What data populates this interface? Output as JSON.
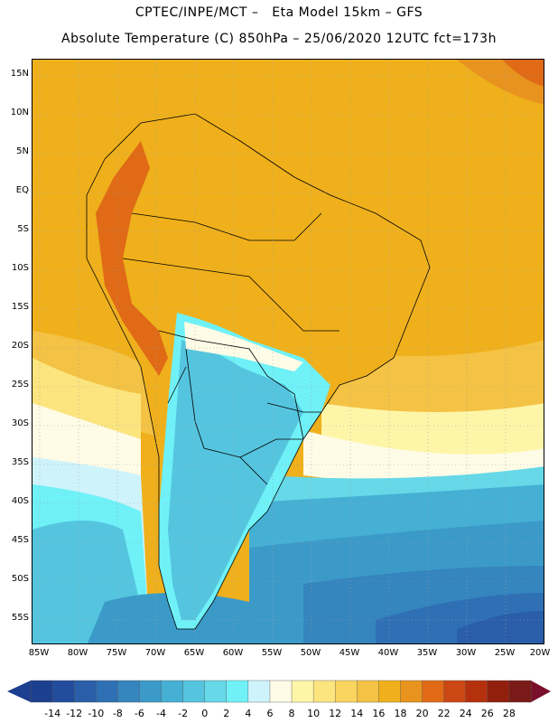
{
  "title": {
    "line1": "CPTEC/INPE/MCT –   Eta Model 15km – GFS",
    "line2": "Absolute Temperature (C) 850hPa – 25/06/2020 12UTC fct=173h"
  },
  "axes": {
    "lat_labels": [
      "15N",
      "10N",
      "5N",
      "EQ",
      "5S",
      "10S",
      "15S",
      "20S",
      "25S",
      "30S",
      "35S",
      "40S",
      "45S",
      "50S",
      "55S"
    ],
    "lon_labels": [
      "85W",
      "80W",
      "75W",
      "70W",
      "65W",
      "60W",
      "55W",
      "50W",
      "45W",
      "40W",
      "35W",
      "30W",
      "25W",
      "20W"
    ]
  },
  "colorbar": {
    "labels": [
      "-14",
      "-12",
      "-10",
      "-8",
      "-6",
      "-4",
      "-2",
      "0",
      "2",
      "4",
      "6",
      "8",
      "10",
      "12",
      "14",
      "16",
      "18",
      "20",
      "22",
      "24",
      "26",
      "28"
    ],
    "colors": [
      "#1d3f8f",
      "#234c9c",
      "#2a5ea9",
      "#2f70b4",
      "#3585be",
      "#3c9ac8",
      "#45b0d4",
      "#55c5df",
      "#66d8e8",
      "#6ff1f7",
      "#cff3fb",
      "#fefbe6",
      "#fdf6a8",
      "#fce57f",
      "#f9d55f",
      "#f4c244",
      "#efb01c",
      "#e9931f",
      "#e06a15",
      "#cb4713",
      "#b5310e",
      "#921f0c",
      "#7a1a18"
    ],
    "arrow_left": "#1d3f8f",
    "arrow_right": "#7a0f2b"
  },
  "colors": {
    "ocean_warm": "#efb01c",
    "ocean_mid": "#f4c244",
    "land_border": "#000000"
  }
}
